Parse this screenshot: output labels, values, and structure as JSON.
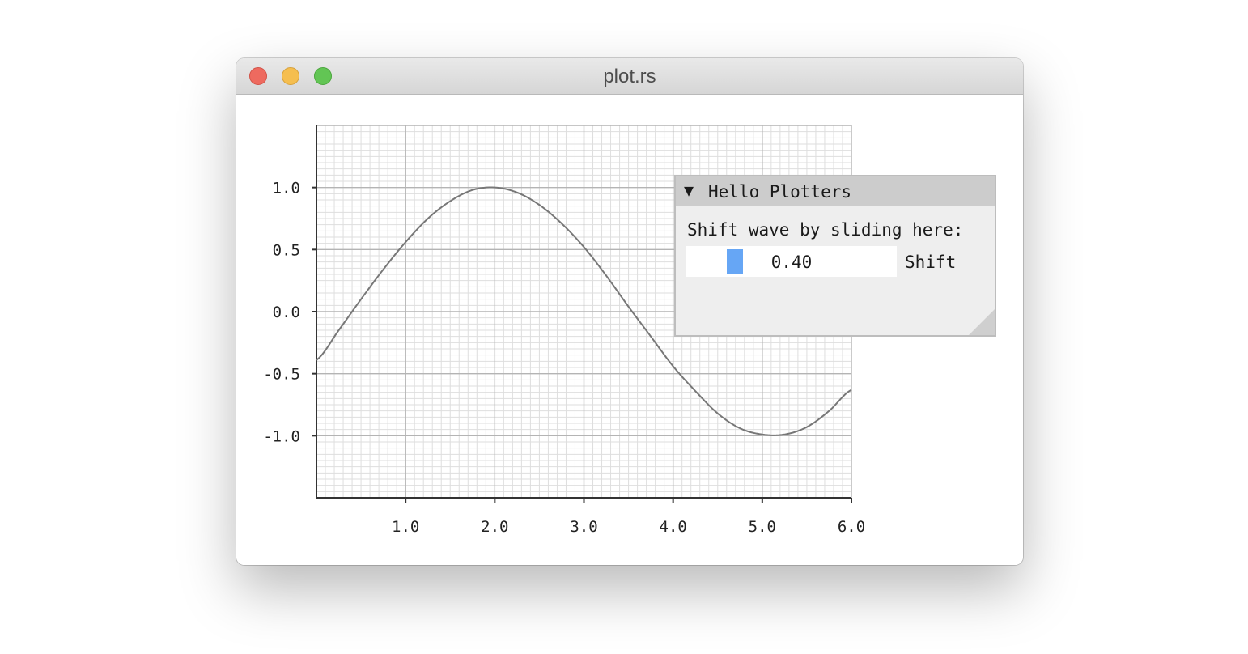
{
  "window": {
    "title": "plot.rs"
  },
  "panel": {
    "title": "Hello Plotters",
    "label": "Shift wave by sliding here:",
    "slider": {
      "value": 0.4,
      "value_text": "0.40",
      "caption": "Shift",
      "color": "#66a6f5"
    }
  },
  "chart_data": {
    "type": "line",
    "title": "",
    "xlabel": "",
    "ylabel": "",
    "xlim": [
      0,
      6
    ],
    "ylim": [
      -1.5,
      1.5
    ],
    "grid": true,
    "x_ticks": [
      "1.0",
      "2.0",
      "3.0",
      "4.0",
      "5.0",
      "6.0"
    ],
    "y_ticks": [
      "1.0",
      "0.5",
      "0.0",
      "-0.5",
      "-1.0"
    ],
    "series": [
      {
        "function": "sin(x - 0.40)",
        "color": "#777777",
        "x": [
          0,
          0.25,
          0.5,
          0.75,
          1.0,
          1.25,
          1.5,
          1.75,
          2.0,
          2.25,
          2.5,
          2.75,
          3.0,
          3.25,
          3.5,
          3.75,
          4.0,
          4.25,
          4.5,
          4.75,
          5.0,
          5.25,
          5.5,
          5.75,
          6.0
        ],
        "values": [
          -0.39,
          -0.15,
          0.1,
          0.34,
          0.56,
          0.75,
          0.89,
          0.98,
          1.0,
          0.96,
          0.86,
          0.71,
          0.52,
          0.29,
          0.04,
          -0.2,
          -0.44,
          -0.64,
          -0.82,
          -0.94,
          -0.99,
          -0.99,
          -0.93,
          -0.8,
          -0.63
        ]
      }
    ]
  }
}
